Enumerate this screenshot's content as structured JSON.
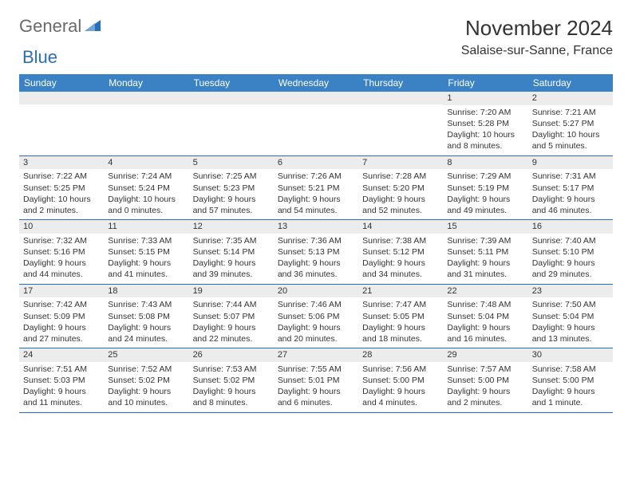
{
  "logo": {
    "text1": "General",
    "text2": "Blue"
  },
  "title": "November 2024",
  "location": "Salaise-sur-Sanne, France",
  "colors": {
    "header_bg": "#3b82c4",
    "header_text": "#ffffff",
    "daynum_bg": "#ececec",
    "border": "#2a6fb5",
    "logo_gray": "#6a6a6a",
    "logo_blue": "#2a6fb5"
  },
  "day_headers": [
    "Sunday",
    "Monday",
    "Tuesday",
    "Wednesday",
    "Thursday",
    "Friday",
    "Saturday"
  ],
  "weeks": [
    [
      {
        "n": "",
        "sunrise": "",
        "sunset": "",
        "daylight": ""
      },
      {
        "n": "",
        "sunrise": "",
        "sunset": "",
        "daylight": ""
      },
      {
        "n": "",
        "sunrise": "",
        "sunset": "",
        "daylight": ""
      },
      {
        "n": "",
        "sunrise": "",
        "sunset": "",
        "daylight": ""
      },
      {
        "n": "",
        "sunrise": "",
        "sunset": "",
        "daylight": ""
      },
      {
        "n": "1",
        "sunrise": "Sunrise: 7:20 AM",
        "sunset": "Sunset: 5:28 PM",
        "daylight": "Daylight: 10 hours and 8 minutes."
      },
      {
        "n": "2",
        "sunrise": "Sunrise: 7:21 AM",
        "sunset": "Sunset: 5:27 PM",
        "daylight": "Daylight: 10 hours and 5 minutes."
      }
    ],
    [
      {
        "n": "3",
        "sunrise": "Sunrise: 7:22 AM",
        "sunset": "Sunset: 5:25 PM",
        "daylight": "Daylight: 10 hours and 2 minutes."
      },
      {
        "n": "4",
        "sunrise": "Sunrise: 7:24 AM",
        "sunset": "Sunset: 5:24 PM",
        "daylight": "Daylight: 10 hours and 0 minutes."
      },
      {
        "n": "5",
        "sunrise": "Sunrise: 7:25 AM",
        "sunset": "Sunset: 5:23 PM",
        "daylight": "Daylight: 9 hours and 57 minutes."
      },
      {
        "n": "6",
        "sunrise": "Sunrise: 7:26 AM",
        "sunset": "Sunset: 5:21 PM",
        "daylight": "Daylight: 9 hours and 54 minutes."
      },
      {
        "n": "7",
        "sunrise": "Sunrise: 7:28 AM",
        "sunset": "Sunset: 5:20 PM",
        "daylight": "Daylight: 9 hours and 52 minutes."
      },
      {
        "n": "8",
        "sunrise": "Sunrise: 7:29 AM",
        "sunset": "Sunset: 5:19 PM",
        "daylight": "Daylight: 9 hours and 49 minutes."
      },
      {
        "n": "9",
        "sunrise": "Sunrise: 7:31 AM",
        "sunset": "Sunset: 5:17 PM",
        "daylight": "Daylight: 9 hours and 46 minutes."
      }
    ],
    [
      {
        "n": "10",
        "sunrise": "Sunrise: 7:32 AM",
        "sunset": "Sunset: 5:16 PM",
        "daylight": "Daylight: 9 hours and 44 minutes."
      },
      {
        "n": "11",
        "sunrise": "Sunrise: 7:33 AM",
        "sunset": "Sunset: 5:15 PM",
        "daylight": "Daylight: 9 hours and 41 minutes."
      },
      {
        "n": "12",
        "sunrise": "Sunrise: 7:35 AM",
        "sunset": "Sunset: 5:14 PM",
        "daylight": "Daylight: 9 hours and 39 minutes."
      },
      {
        "n": "13",
        "sunrise": "Sunrise: 7:36 AM",
        "sunset": "Sunset: 5:13 PM",
        "daylight": "Daylight: 9 hours and 36 minutes."
      },
      {
        "n": "14",
        "sunrise": "Sunrise: 7:38 AM",
        "sunset": "Sunset: 5:12 PM",
        "daylight": "Daylight: 9 hours and 34 minutes."
      },
      {
        "n": "15",
        "sunrise": "Sunrise: 7:39 AM",
        "sunset": "Sunset: 5:11 PM",
        "daylight": "Daylight: 9 hours and 31 minutes."
      },
      {
        "n": "16",
        "sunrise": "Sunrise: 7:40 AM",
        "sunset": "Sunset: 5:10 PM",
        "daylight": "Daylight: 9 hours and 29 minutes."
      }
    ],
    [
      {
        "n": "17",
        "sunrise": "Sunrise: 7:42 AM",
        "sunset": "Sunset: 5:09 PM",
        "daylight": "Daylight: 9 hours and 27 minutes."
      },
      {
        "n": "18",
        "sunrise": "Sunrise: 7:43 AM",
        "sunset": "Sunset: 5:08 PM",
        "daylight": "Daylight: 9 hours and 24 minutes."
      },
      {
        "n": "19",
        "sunrise": "Sunrise: 7:44 AM",
        "sunset": "Sunset: 5:07 PM",
        "daylight": "Daylight: 9 hours and 22 minutes."
      },
      {
        "n": "20",
        "sunrise": "Sunrise: 7:46 AM",
        "sunset": "Sunset: 5:06 PM",
        "daylight": "Daylight: 9 hours and 20 minutes."
      },
      {
        "n": "21",
        "sunrise": "Sunrise: 7:47 AM",
        "sunset": "Sunset: 5:05 PM",
        "daylight": "Daylight: 9 hours and 18 minutes."
      },
      {
        "n": "22",
        "sunrise": "Sunrise: 7:48 AM",
        "sunset": "Sunset: 5:04 PM",
        "daylight": "Daylight: 9 hours and 16 minutes."
      },
      {
        "n": "23",
        "sunrise": "Sunrise: 7:50 AM",
        "sunset": "Sunset: 5:04 PM",
        "daylight": "Daylight: 9 hours and 13 minutes."
      }
    ],
    [
      {
        "n": "24",
        "sunrise": "Sunrise: 7:51 AM",
        "sunset": "Sunset: 5:03 PM",
        "daylight": "Daylight: 9 hours and 11 minutes."
      },
      {
        "n": "25",
        "sunrise": "Sunrise: 7:52 AM",
        "sunset": "Sunset: 5:02 PM",
        "daylight": "Daylight: 9 hours and 10 minutes."
      },
      {
        "n": "26",
        "sunrise": "Sunrise: 7:53 AM",
        "sunset": "Sunset: 5:02 PM",
        "daylight": "Daylight: 9 hours and 8 minutes."
      },
      {
        "n": "27",
        "sunrise": "Sunrise: 7:55 AM",
        "sunset": "Sunset: 5:01 PM",
        "daylight": "Daylight: 9 hours and 6 minutes."
      },
      {
        "n": "28",
        "sunrise": "Sunrise: 7:56 AM",
        "sunset": "Sunset: 5:00 PM",
        "daylight": "Daylight: 9 hours and 4 minutes."
      },
      {
        "n": "29",
        "sunrise": "Sunrise: 7:57 AM",
        "sunset": "Sunset: 5:00 PM",
        "daylight": "Daylight: 9 hours and 2 minutes."
      },
      {
        "n": "30",
        "sunrise": "Sunrise: 7:58 AM",
        "sunset": "Sunset: 5:00 PM",
        "daylight": "Daylight: 9 hours and 1 minute."
      }
    ]
  ]
}
